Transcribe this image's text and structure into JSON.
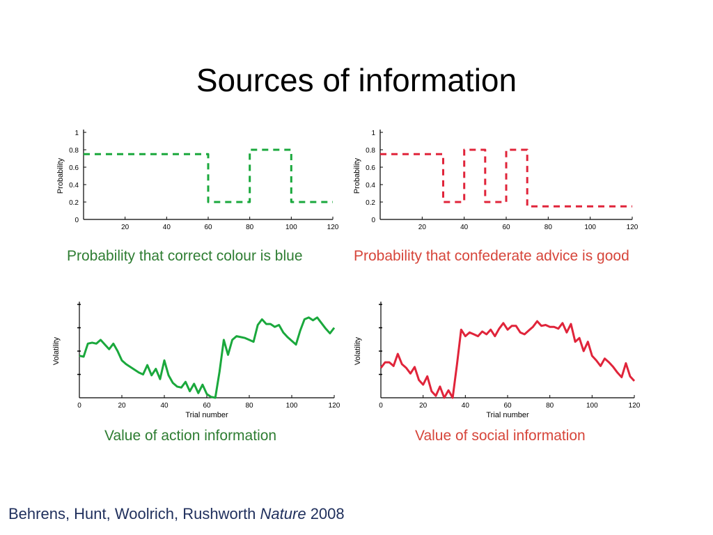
{
  "slide": {
    "title": "Sources of information",
    "citation": {
      "authors": "Behrens, Hunt, Woolrich, Rushworth ",
      "journal": "Nature",
      "year": " 2008"
    },
    "captions": [
      "Probability that correct colour is blue",
      "Probability that confederate advice is good",
      "Value of action information",
      "Value of social information"
    ],
    "colors": {
      "green": "#1aa83c",
      "red": "#e0243a",
      "caption_green": "#2e7d32",
      "caption_red": "#d6453a"
    }
  },
  "chart_data": [
    {
      "type": "line",
      "style": "dashed",
      "color": "#1aa83c",
      "ylabel": "Probability",
      "xlabel": "",
      "xlim": [
        0,
        120
      ],
      "ylim": [
        0,
        1
      ],
      "xticks": [
        "20",
        "40",
        "60",
        "80",
        "100",
        "120"
      ],
      "yticks": [
        "0",
        "0.2",
        "0.4",
        "0.6",
        "0.8",
        "1"
      ],
      "x": [
        0,
        60,
        60,
        80,
        80,
        100,
        100,
        120
      ],
      "y": [
        0.75,
        0.75,
        0.2,
        0.2,
        0.8,
        0.8,
        0.2,
        0.2
      ]
    },
    {
      "type": "line",
      "style": "dashed",
      "color": "#e0243a",
      "ylabel": "Probability",
      "xlabel": "",
      "xlim": [
        0,
        120
      ],
      "ylim": [
        0,
        1
      ],
      "xticks": [
        "20",
        "40",
        "60",
        "80",
        "100",
        "120"
      ],
      "yticks": [
        "0",
        "0.2",
        "0.4",
        "0.6",
        "0.8",
        "1"
      ],
      "x": [
        0,
        30,
        30,
        40,
        40,
        50,
        50,
        60,
        60,
        70,
        70,
        120
      ],
      "y": [
        0.75,
        0.75,
        0.2,
        0.2,
        0.8,
        0.8,
        0.2,
        0.2,
        0.8,
        0.8,
        0.15,
        0.15
      ]
    },
    {
      "type": "line",
      "style": "solid",
      "color": "#1aa83c",
      "ylabel": "Volatility",
      "xlabel": "Trial number",
      "xlim": [
        0,
        120
      ],
      "ylim": [
        0,
        1
      ],
      "xticks": [
        "0",
        "20",
        "40",
        "60",
        "80",
        "100",
        "120"
      ],
      "yticks": [],
      "x": [
        0,
        2,
        4,
        6,
        8,
        10,
        12,
        14,
        16,
        18,
        20,
        22,
        24,
        26,
        28,
        30,
        32,
        34,
        36,
        38,
        40,
        42,
        44,
        46,
        48,
        50,
        52,
        54,
        56,
        58,
        60,
        62,
        64,
        66,
        68,
        70,
        72,
        74,
        76,
        78,
        80,
        82,
        84,
        86,
        88,
        90,
        92,
        94,
        96,
        98,
        100,
        102,
        104,
        106,
        108,
        110,
        112,
        114,
        116,
        118,
        120
      ],
      "y": [
        0.45,
        0.44,
        0.58,
        0.59,
        0.58,
        0.62,
        0.57,
        0.52,
        0.58,
        0.5,
        0.4,
        0.36,
        0.33,
        0.3,
        0.27,
        0.25,
        0.35,
        0.24,
        0.31,
        0.2,
        0.4,
        0.24,
        0.16,
        0.12,
        0.11,
        0.17,
        0.07,
        0.15,
        0.05,
        0.14,
        0.04,
        0.01,
        0.0,
        0.28,
        0.62,
        0.46,
        0.62,
        0.66,
        0.65,
        0.64,
        0.62,
        0.6,
        0.78,
        0.84,
        0.79,
        0.79,
        0.76,
        0.78,
        0.7,
        0.65,
        0.61,
        0.57,
        0.72,
        0.84,
        0.86,
        0.83,
        0.86,
        0.8,
        0.74,
        0.69,
        0.75
      ]
    },
    {
      "type": "line",
      "style": "solid",
      "color": "#e0243a",
      "ylabel": "Volatility",
      "xlabel": "Trial number",
      "xlim": [
        0,
        120
      ],
      "ylim": [
        0,
        1
      ],
      "xticks": [
        "0",
        "20",
        "40",
        "60",
        "80",
        "100",
        "120"
      ],
      "yticks": [],
      "x": [
        0,
        2,
        4,
        6,
        8,
        10,
        12,
        14,
        16,
        18,
        20,
        22,
        24,
        26,
        28,
        30,
        32,
        34,
        36,
        38,
        40,
        42,
        44,
        46,
        48,
        50,
        52,
        54,
        56,
        58,
        60,
        62,
        64,
        66,
        68,
        70,
        72,
        74,
        76,
        78,
        80,
        82,
        84,
        86,
        88,
        90,
        92,
        94,
        96,
        98,
        100,
        102,
        104,
        106,
        108,
        110,
        112,
        114,
        116,
        118,
        120
      ],
      "y": [
        0.32,
        0.38,
        0.38,
        0.34,
        0.47,
        0.36,
        0.32,
        0.26,
        0.33,
        0.19,
        0.14,
        0.23,
        0.07,
        0.02,
        0.12,
        0.0,
        0.08,
        0.0,
        0.35,
        0.73,
        0.66,
        0.7,
        0.68,
        0.66,
        0.71,
        0.68,
        0.73,
        0.66,
        0.74,
        0.8,
        0.73,
        0.77,
        0.77,
        0.7,
        0.68,
        0.72,
        0.76,
        0.82,
        0.77,
        0.78,
        0.76,
        0.76,
        0.74,
        0.8,
        0.7,
        0.79,
        0.6,
        0.64,
        0.5,
        0.6,
        0.45,
        0.4,
        0.34,
        0.42,
        0.38,
        0.33,
        0.27,
        0.22,
        0.37,
        0.23,
        0.18
      ]
    }
  ]
}
